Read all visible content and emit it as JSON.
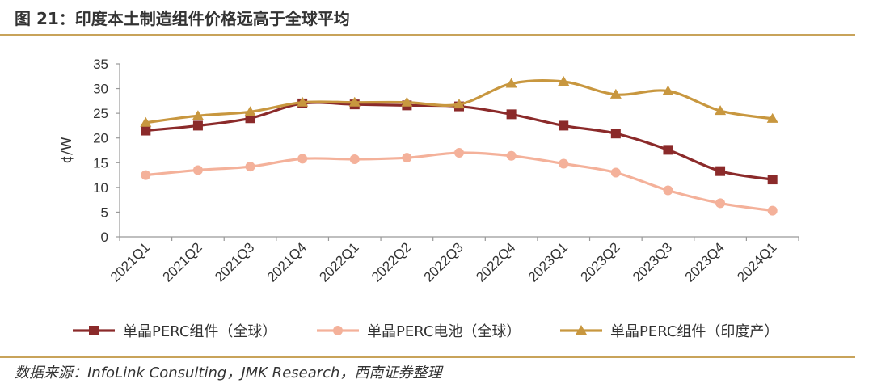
{
  "header": {
    "title": "图 21：印度本土制造组件价格远高于全球平均"
  },
  "footer": {
    "source": "数据来源：InfoLink Consulting，JMK Research，西南证券整理"
  },
  "chart_data": {
    "type": "line",
    "title": "图 21：印度本土制造组件价格远高于全球平均",
    "xlabel": "",
    "ylabel": "¢/W",
    "ylim": [
      0,
      35
    ],
    "yticks": [
      "0",
      "5",
      "10",
      "15",
      "20",
      "25",
      "30",
      "35"
    ],
    "grid": false,
    "legend_position": "bottom",
    "categories": [
      "2021Q1",
      "2021Q2",
      "2021Q3",
      "2021Q4",
      "2022Q1",
      "2022Q2",
      "2022Q3",
      "2022Q4",
      "2023Q1",
      "2023Q2",
      "2023Q3",
      "2023Q4",
      "2024Q1"
    ],
    "series": [
      {
        "name": "单晶PERC组件（全球）",
        "marker": "square",
        "color": "#8b2a2a",
        "values": [
          21.5,
          22.5,
          24.0,
          27.0,
          26.8,
          26.6,
          26.4,
          24.8,
          22.5,
          20.9,
          17.6,
          13.3,
          11.6
        ]
      },
      {
        "name": "单晶PERC电池（全球）",
        "marker": "circle",
        "color": "#f4b19a",
        "values": [
          12.5,
          13.5,
          14.2,
          15.8,
          15.7,
          16.0,
          17.0,
          16.4,
          14.8,
          13.0,
          9.4,
          6.8,
          5.3
        ]
      },
      {
        "name": "单晶PERC组件（印度产）",
        "marker": "triangle",
        "color": "#c8973f",
        "values": [
          23.1,
          24.5,
          25.3,
          27.2,
          27.2,
          27.2,
          26.8,
          31.0,
          31.4,
          28.8,
          29.5,
          25.5,
          23.9
        ]
      }
    ]
  }
}
